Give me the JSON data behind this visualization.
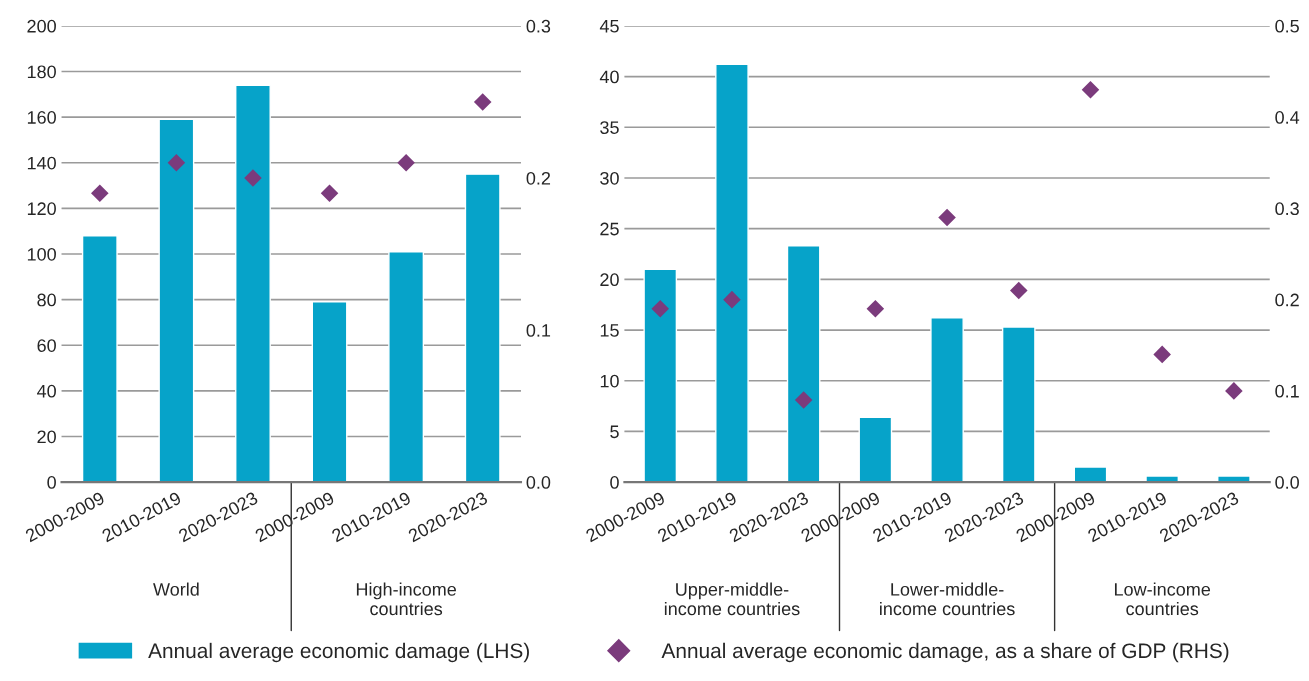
{
  "chart_data": [
    {
      "type": "bar",
      "categories": [
        "2000-2009",
        "2010-2019",
        "2020-2023",
        "2000-2009",
        "2010-2019",
        "2020-2023"
      ],
      "series": [
        {
          "name": "Annual average economic damage (LHS)",
          "color": "#06a3c9",
          "values": [
            108,
            159,
            174,
            79,
            101,
            135
          ]
        },
        {
          "type": "scatter",
          "axis": "y2",
          "name": "Annual average economic damage, as a share of GDP (RHS)",
          "color": "#7b3b7c",
          "marker": "diamond",
          "values": [
            0.19,
            0.21,
            0.2,
            0.19,
            0.21,
            0.25
          ]
        }
      ],
      "annotations": [
        "World",
        "High-income\ncountries"
      ],
      "ylim": [
        0,
        200
      ],
      "yticks": [
        0,
        20,
        40,
        60,
        80,
        100,
        120,
        140,
        160,
        180,
        200
      ],
      "y2lim": [
        0,
        0.3
      ],
      "y2ticks": [
        {
          "value": 0,
          "label": "0.0"
        },
        0.1,
        0.2,
        0.3
      ],
      "grid": "y",
      "legend": "bottom"
    },
    {
      "type": "bar",
      "categories": [
        "2000-2009",
        "2010-2019",
        "2020-2023",
        "2000-2009",
        "2010-2019",
        "2020-2023",
        "2000-2009",
        "2010-2019",
        "2020-2023"
      ],
      "series": [
        {
          "color": "#06a3c9",
          "values": [
            21.0,
            41.2,
            23.3,
            6.4,
            16.2,
            15.3,
            1.5,
            0.6,
            0.6
          ]
        },
        {
          "type": "scatter",
          "axis": "y2",
          "color": "#7b3b7c",
          "marker": "diamond",
          "values": [
            0.19,
            0.2,
            0.09,
            0.19,
            0.29,
            0.21,
            0.43,
            0.14,
            0.1
          ]
        }
      ],
      "annotations": [
        "Upper-middle-\nincome countries",
        "Lower-middle-\nincome countries",
        "Low-income\ncountries"
      ],
      "ylim": [
        0,
        45
      ],
      "yticks": [
        0,
        5,
        10,
        15,
        20,
        25,
        30,
        35,
        40,
        45
      ],
      "y2lim": [
        0,
        0.5
      ],
      "y2ticks": [
        {
          "value": 0,
          "label": "0.0"
        },
        0.1,
        0.2,
        0.3,
        0.4,
        0.5
      ],
      "grid": "y"
    }
  ]
}
